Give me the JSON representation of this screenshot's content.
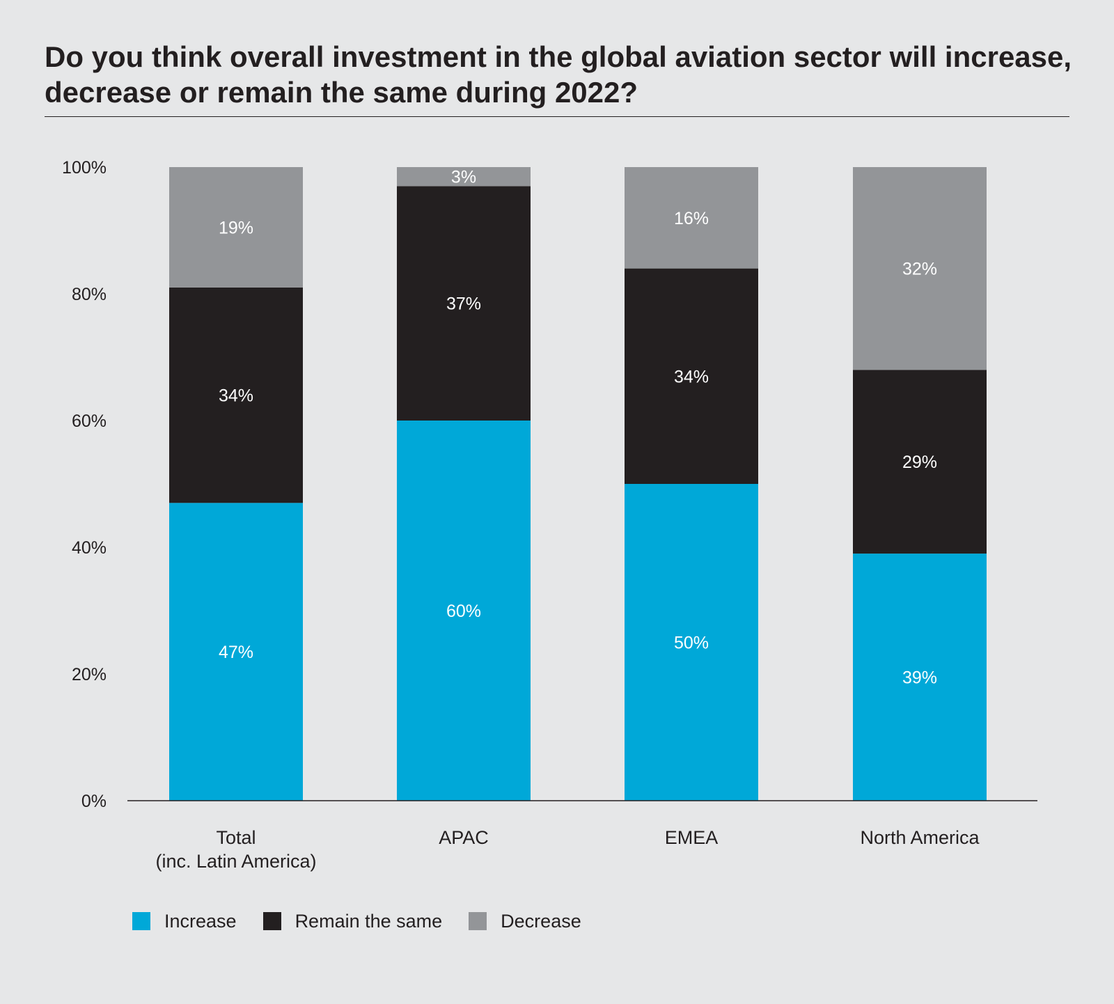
{
  "title": "Do you think overall investment in the global aviation sector will increase, decrease or remain the same during 2022?",
  "chart_data": {
    "type": "bar",
    "stacked": true,
    "categories": [
      [
        "Total",
        "(inc. Latin America)"
      ],
      [
        "APAC"
      ],
      [
        "EMEA"
      ],
      [
        "North America"
      ]
    ],
    "series": [
      {
        "name": "Increase",
        "color": "#00a8d8",
        "values": [
          47,
          60,
          50,
          39
        ],
        "labels": [
          "47%",
          "60%",
          "50%",
          "39%"
        ]
      },
      {
        "name": "Remain the same",
        "color": "#231f20",
        "values": [
          34,
          37,
          34,
          29
        ],
        "labels": [
          "34%",
          "37%",
          "34%",
          "29%"
        ]
      },
      {
        "name": "Decrease",
        "color": "#939598",
        "values": [
          19,
          3,
          16,
          32
        ],
        "labels": [
          "19%",
          "3%",
          "16%",
          "32%"
        ]
      }
    ],
    "yticks": [
      0,
      20,
      40,
      60,
      80,
      100
    ],
    "ytick_labels": [
      "0%",
      "20%",
      "40%",
      "60%",
      "80%",
      "100%"
    ],
    "ylim": [
      0,
      100
    ],
    "xlabel": "",
    "ylabel": "",
    "legend_position": "bottom-left"
  }
}
